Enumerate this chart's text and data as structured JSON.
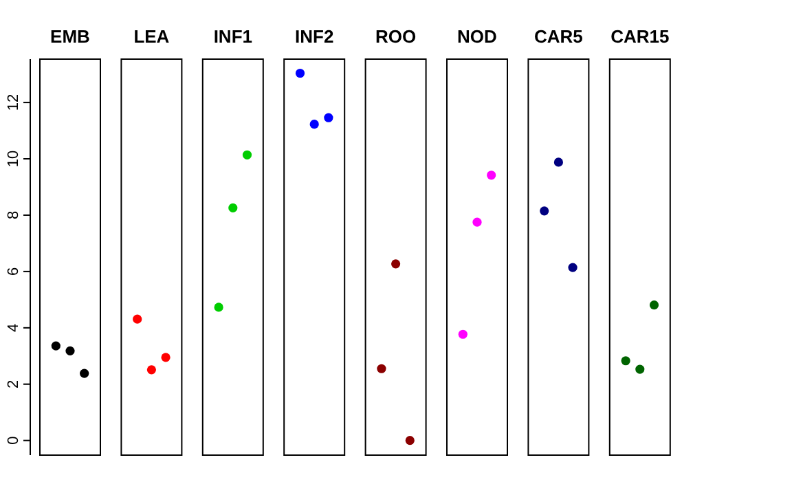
{
  "chart_data": {
    "type": "scatter",
    "categories": [
      "EMB",
      "LEA",
      "INF1",
      "INF2",
      "ROO",
      "NOD",
      "CAR5",
      "CAR15"
    ],
    "marker": "circle",
    "ylim": [
      -0.52,
      13.54
    ],
    "yticks": [
      0,
      2,
      4,
      6,
      8,
      10,
      12
    ],
    "series": [
      {
        "color": "#000000",
        "x": [
          "EMB",
          "EMB",
          "EMB"
        ],
        "values": [
          3.36,
          3.18,
          2.38
        ]
      },
      {
        "color": "#ff0000",
        "x": [
          "LEA",
          "LEA",
          "LEA"
        ],
        "values": [
          4.31,
          2.51,
          2.95
        ]
      },
      {
        "color": "#00cd00",
        "x": [
          "INF1",
          "INF1",
          "INF1"
        ],
        "values": [
          4.73,
          8.26,
          10.14
        ]
      },
      {
        "color": "#0000ff",
        "x": [
          "INF2",
          "INF2",
          "INF2"
        ],
        "values": [
          13.04,
          11.23,
          11.46
        ]
      },
      {
        "color": "#8b0000",
        "x": [
          "ROO",
          "ROO",
          "ROO"
        ],
        "values": [
          2.55,
          6.27,
          0.0
        ]
      },
      {
        "color": "#ff00ff",
        "x": [
          "NOD",
          "NOD",
          "NOD"
        ],
        "values": [
          3.77,
          7.75,
          9.42
        ]
      },
      {
        "color": "#000080",
        "x": [
          "CAR5",
          "CAR5",
          "CAR5"
        ],
        "values": [
          8.15,
          9.88,
          6.14
        ]
      },
      {
        "color": "#006400",
        "x": [
          "CAR15",
          "CAR15",
          "CAR15"
        ],
        "values": [
          2.83,
          2.53,
          4.81
        ]
      }
    ]
  }
}
